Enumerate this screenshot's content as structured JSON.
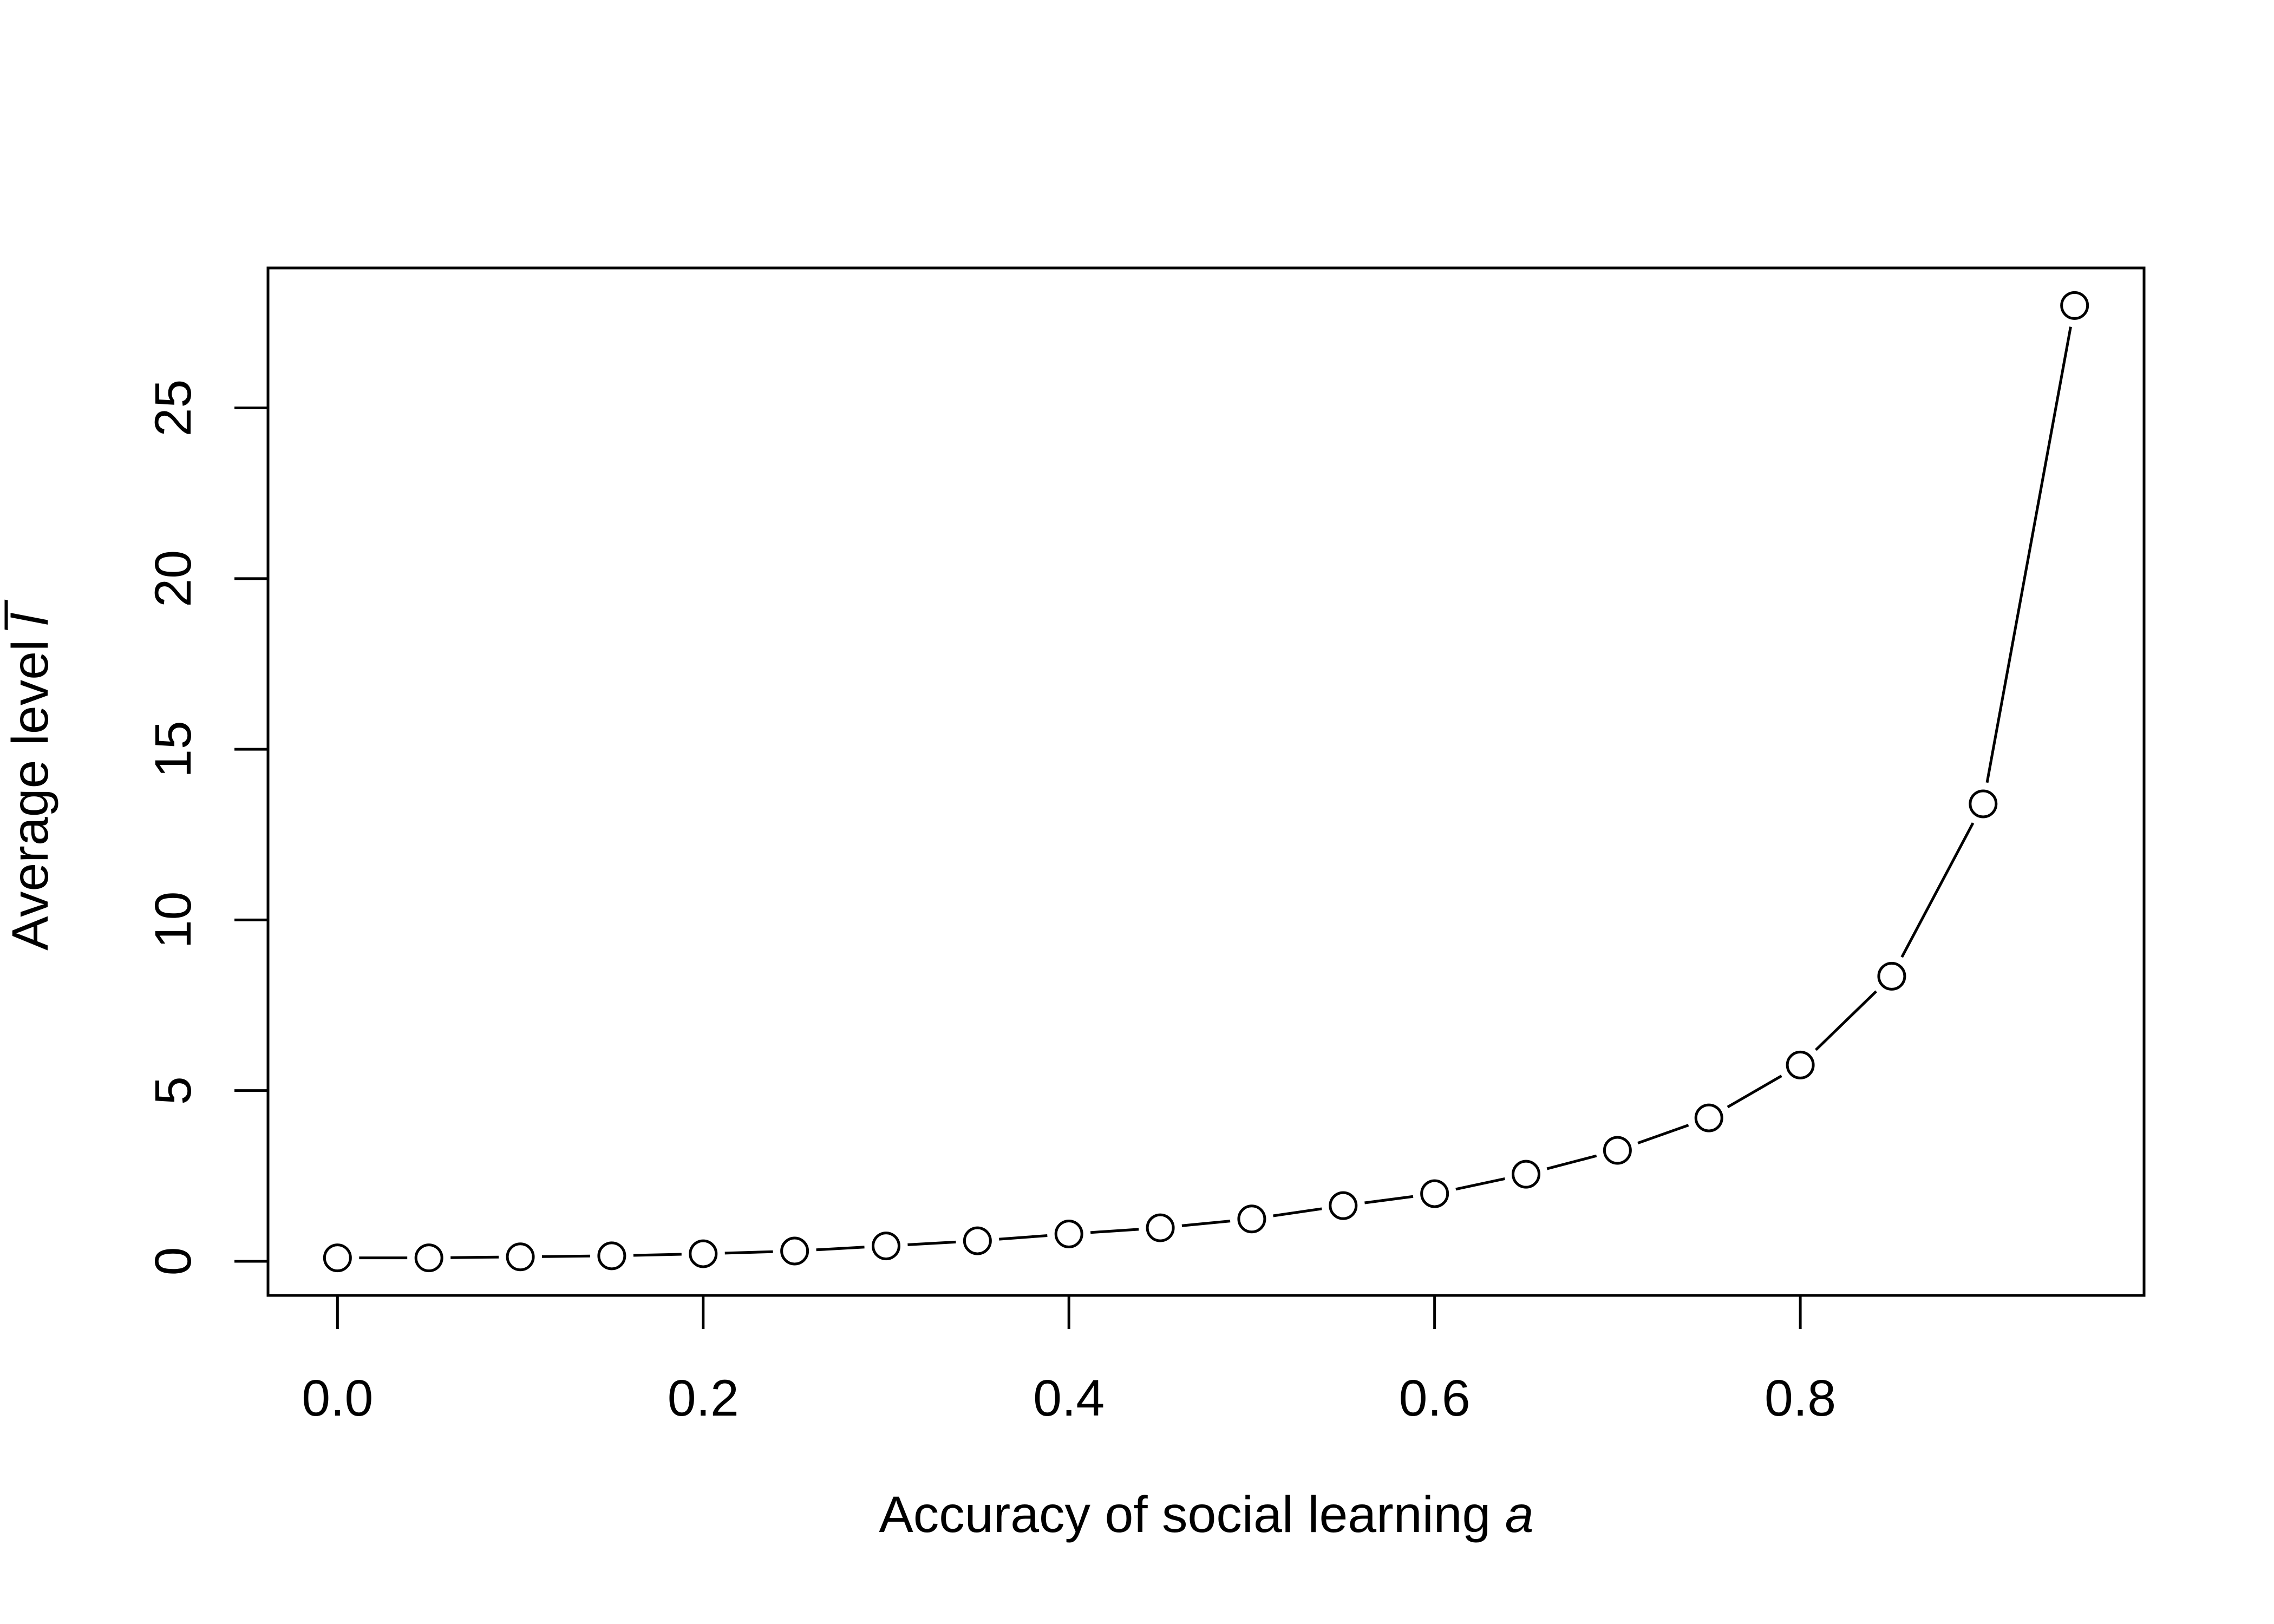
{
  "chart_data": {
    "type": "line",
    "xlabel": "Accuracy of social learning",
    "xlabel_var": "a",
    "ylabel": "Average level",
    "ylabel_var": "l̅",
    "x_ticks": [
      "0.0",
      "0.2",
      "0.4",
      "0.6",
      "0.8"
    ],
    "y_ticks": [
      "0",
      "5",
      "10",
      "15",
      "20",
      "25"
    ],
    "xlim": [
      -0.038,
      0.988
    ],
    "ylim": [
      -1.0,
      29.1
    ],
    "grid": false,
    "legend": "none",
    "series": [
      {
        "marker": "open-circle",
        "line": "solid",
        "x": [
          0.0,
          0.05,
          0.1,
          0.15,
          0.2,
          0.25,
          0.3,
          0.35,
          0.4,
          0.45,
          0.5,
          0.55,
          0.6,
          0.65,
          0.7,
          0.75,
          0.8,
          0.85,
          0.9,
          0.95
        ],
        "y": [
          0.1,
          0.1,
          0.13,
          0.16,
          0.22,
          0.3,
          0.45,
          0.6,
          0.8,
          0.98,
          1.24,
          1.63,
          1.98,
          2.55,
          3.25,
          4.2,
          5.75,
          8.35,
          13.4,
          28.0
        ]
      }
    ]
  }
}
